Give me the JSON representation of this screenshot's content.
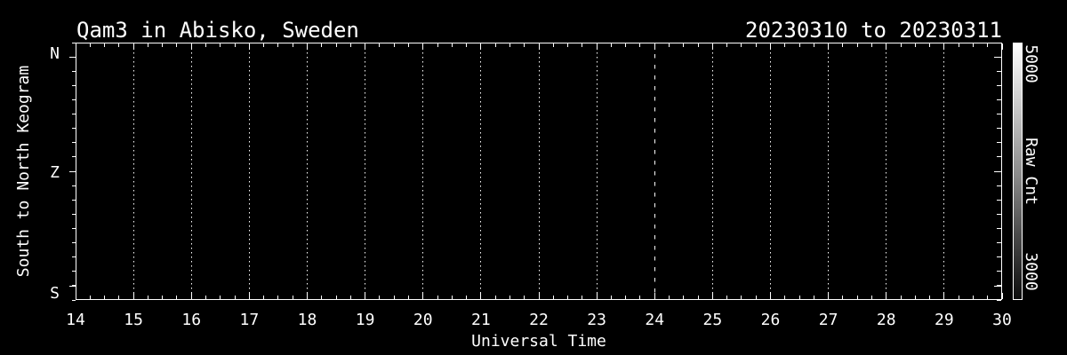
{
  "chart_data": {
    "type": "heatmap",
    "subtype": "keogram",
    "title": "Qam3 in Abisko, Sweden",
    "date_range": "20230310 to 20230311",
    "xlabel": "Universal Time",
    "ylabel": "South to North Keogram",
    "xlim": [
      14,
      30
    ],
    "x_tick_labels": [
      "14",
      "15",
      "16",
      "17",
      "18",
      "19",
      "20",
      "21",
      "22",
      "23",
      "24",
      "25",
      "26",
      "27",
      "28",
      "29",
      "30"
    ],
    "x_minor_ticks_per_hour": 4,
    "y_tick_labels": [
      "N",
      "Z",
      "S"
    ],
    "grid": "dotted vertical gridline at each hour",
    "dashed_line_x": 24,
    "legend_position": "none",
    "values": [],
    "note": "no image data visible; plot interior is uniformly black (below color scale minimum)",
    "colorbar": {
      "label": "Raw Cnt",
      "max_label": "5000",
      "min_label": "3000",
      "top_color": "#ffffff",
      "bottom_color": "#0d0d0d"
    },
    "colors": {
      "background": "#000000",
      "foreground": "#ffffff"
    }
  }
}
